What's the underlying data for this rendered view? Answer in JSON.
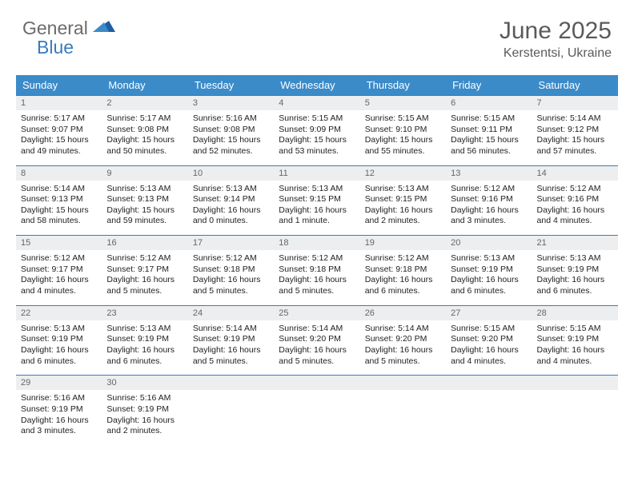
{
  "logo": {
    "text1": "General",
    "text2": "Blue"
  },
  "title": "June 2025",
  "location": "Kerstentsi, Ukraine",
  "colors": {
    "header_bg": "#3b8bc9",
    "rule": "#3b7bbf",
    "daynum_bg": "#eceeef",
    "text_muted": "#5a5a5a",
    "logo_gray": "#6b6b6b",
    "logo_blue": "#3b7bbf"
  },
  "day_headers": [
    "Sunday",
    "Monday",
    "Tuesday",
    "Wednesday",
    "Thursday",
    "Friday",
    "Saturday"
  ],
  "weeks": [
    [
      {
        "n": "1",
        "sr": "Sunrise: 5:17 AM",
        "ss": "Sunset: 9:07 PM",
        "dl": "Daylight: 15 hours and 49 minutes."
      },
      {
        "n": "2",
        "sr": "Sunrise: 5:17 AM",
        "ss": "Sunset: 9:08 PM",
        "dl": "Daylight: 15 hours and 50 minutes."
      },
      {
        "n": "3",
        "sr": "Sunrise: 5:16 AM",
        "ss": "Sunset: 9:08 PM",
        "dl": "Daylight: 15 hours and 52 minutes."
      },
      {
        "n": "4",
        "sr": "Sunrise: 5:15 AM",
        "ss": "Sunset: 9:09 PM",
        "dl": "Daylight: 15 hours and 53 minutes."
      },
      {
        "n": "5",
        "sr": "Sunrise: 5:15 AM",
        "ss": "Sunset: 9:10 PM",
        "dl": "Daylight: 15 hours and 55 minutes."
      },
      {
        "n": "6",
        "sr": "Sunrise: 5:15 AM",
        "ss": "Sunset: 9:11 PM",
        "dl": "Daylight: 15 hours and 56 minutes."
      },
      {
        "n": "7",
        "sr": "Sunrise: 5:14 AM",
        "ss": "Sunset: 9:12 PM",
        "dl": "Daylight: 15 hours and 57 minutes."
      }
    ],
    [
      {
        "n": "8",
        "sr": "Sunrise: 5:14 AM",
        "ss": "Sunset: 9:13 PM",
        "dl": "Daylight: 15 hours and 58 minutes."
      },
      {
        "n": "9",
        "sr": "Sunrise: 5:13 AM",
        "ss": "Sunset: 9:13 PM",
        "dl": "Daylight: 15 hours and 59 minutes."
      },
      {
        "n": "10",
        "sr": "Sunrise: 5:13 AM",
        "ss": "Sunset: 9:14 PM",
        "dl": "Daylight: 16 hours and 0 minutes."
      },
      {
        "n": "11",
        "sr": "Sunrise: 5:13 AM",
        "ss": "Sunset: 9:15 PM",
        "dl": "Daylight: 16 hours and 1 minute."
      },
      {
        "n": "12",
        "sr": "Sunrise: 5:13 AM",
        "ss": "Sunset: 9:15 PM",
        "dl": "Daylight: 16 hours and 2 minutes."
      },
      {
        "n": "13",
        "sr": "Sunrise: 5:12 AM",
        "ss": "Sunset: 9:16 PM",
        "dl": "Daylight: 16 hours and 3 minutes."
      },
      {
        "n": "14",
        "sr": "Sunrise: 5:12 AM",
        "ss": "Sunset: 9:16 PM",
        "dl": "Daylight: 16 hours and 4 minutes."
      }
    ],
    [
      {
        "n": "15",
        "sr": "Sunrise: 5:12 AM",
        "ss": "Sunset: 9:17 PM",
        "dl": "Daylight: 16 hours and 4 minutes."
      },
      {
        "n": "16",
        "sr": "Sunrise: 5:12 AM",
        "ss": "Sunset: 9:17 PM",
        "dl": "Daylight: 16 hours and 5 minutes."
      },
      {
        "n": "17",
        "sr": "Sunrise: 5:12 AM",
        "ss": "Sunset: 9:18 PM",
        "dl": "Daylight: 16 hours and 5 minutes."
      },
      {
        "n": "18",
        "sr": "Sunrise: 5:12 AM",
        "ss": "Sunset: 9:18 PM",
        "dl": "Daylight: 16 hours and 5 minutes."
      },
      {
        "n": "19",
        "sr": "Sunrise: 5:12 AM",
        "ss": "Sunset: 9:18 PM",
        "dl": "Daylight: 16 hours and 6 minutes."
      },
      {
        "n": "20",
        "sr": "Sunrise: 5:13 AM",
        "ss": "Sunset: 9:19 PM",
        "dl": "Daylight: 16 hours and 6 minutes."
      },
      {
        "n": "21",
        "sr": "Sunrise: 5:13 AM",
        "ss": "Sunset: 9:19 PM",
        "dl": "Daylight: 16 hours and 6 minutes."
      }
    ],
    [
      {
        "n": "22",
        "sr": "Sunrise: 5:13 AM",
        "ss": "Sunset: 9:19 PM",
        "dl": "Daylight: 16 hours and 6 minutes."
      },
      {
        "n": "23",
        "sr": "Sunrise: 5:13 AM",
        "ss": "Sunset: 9:19 PM",
        "dl": "Daylight: 16 hours and 6 minutes."
      },
      {
        "n": "24",
        "sr": "Sunrise: 5:14 AM",
        "ss": "Sunset: 9:19 PM",
        "dl": "Daylight: 16 hours and 5 minutes."
      },
      {
        "n": "25",
        "sr": "Sunrise: 5:14 AM",
        "ss": "Sunset: 9:20 PM",
        "dl": "Daylight: 16 hours and 5 minutes."
      },
      {
        "n": "26",
        "sr": "Sunrise: 5:14 AM",
        "ss": "Sunset: 9:20 PM",
        "dl": "Daylight: 16 hours and 5 minutes."
      },
      {
        "n": "27",
        "sr": "Sunrise: 5:15 AM",
        "ss": "Sunset: 9:20 PM",
        "dl": "Daylight: 16 hours and 4 minutes."
      },
      {
        "n": "28",
        "sr": "Sunrise: 5:15 AM",
        "ss": "Sunset: 9:19 PM",
        "dl": "Daylight: 16 hours and 4 minutes."
      }
    ],
    [
      {
        "n": "29",
        "sr": "Sunrise: 5:16 AM",
        "ss": "Sunset: 9:19 PM",
        "dl": "Daylight: 16 hours and 3 minutes."
      },
      {
        "n": "30",
        "sr": "Sunrise: 5:16 AM",
        "ss": "Sunset: 9:19 PM",
        "dl": "Daylight: 16 hours and 2 minutes."
      },
      {
        "empty": true
      },
      {
        "empty": true
      },
      {
        "empty": true
      },
      {
        "empty": true
      },
      {
        "empty": true
      }
    ]
  ]
}
